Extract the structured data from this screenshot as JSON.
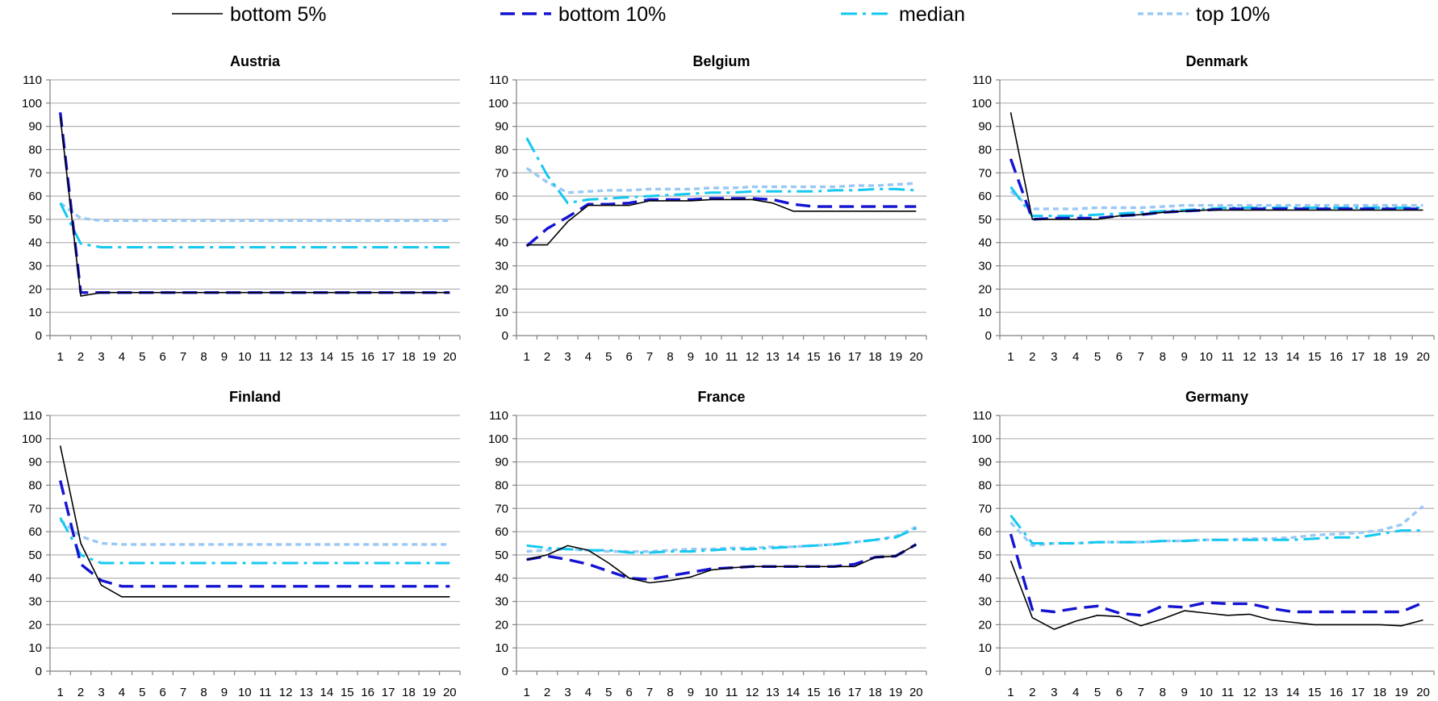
{
  "legend": [
    {
      "key": "b5",
      "label": "bottom 5%"
    },
    {
      "key": "b10",
      "label": "bottom 10%"
    },
    {
      "key": "med",
      "label": "median"
    },
    {
      "key": "t10",
      "label": "top 10%"
    }
  ],
  "styles": {
    "b5": {
      "color": "#000000",
      "width": 1.6,
      "dash": ""
    },
    "b10": {
      "color": "#1414d2",
      "width": 3.4,
      "dash": "18,9"
    },
    "med": {
      "color": "#14c8f0",
      "width": 3.0,
      "dash": "20,7,4,7"
    },
    "t10": {
      "color": "#9ac8f4",
      "width": 3.4,
      "dash": "7,5"
    }
  },
  "chart_data": [
    {
      "type": "line",
      "title": "Austria",
      "x": [
        1,
        2,
        3,
        4,
        5,
        6,
        7,
        8,
        9,
        10,
        11,
        12,
        13,
        14,
        15,
        16,
        17,
        18,
        19,
        20
      ],
      "ylim": [
        0,
        110
      ],
      "yticks": [
        0,
        10,
        20,
        30,
        40,
        50,
        60,
        70,
        80,
        90,
        100,
        110
      ],
      "grid": true,
      "series": [
        {
          "key": "b5",
          "name": "bottom 5%",
          "values": [
            94,
            17,
            18.5,
            18.5,
            18.5,
            18.5,
            18.5,
            18.5,
            18.5,
            18.5,
            18.5,
            18.5,
            18.5,
            18.5,
            18.5,
            18.5,
            18.5,
            18.5,
            18.5,
            18.5
          ]
        },
        {
          "key": "b10",
          "name": "bottom 10%",
          "values": [
            96,
            18.5,
            18.5,
            18.5,
            18.5,
            18.5,
            18.5,
            18.5,
            18.5,
            18.5,
            18.5,
            18.5,
            18.5,
            18.5,
            18.5,
            18.5,
            18.5,
            18.5,
            18.5,
            18.5
          ]
        },
        {
          "key": "med",
          "name": "median",
          "values": [
            57,
            39.5,
            38,
            38,
            38,
            38,
            38,
            38,
            38,
            38,
            38,
            38,
            38,
            38,
            38,
            38,
            38,
            38,
            38,
            38
          ]
        },
        {
          "key": "t10",
          "name": "top 10%",
          "values": [
            57,
            50.5,
            49.5,
            49.5,
            49.5,
            49.5,
            49.5,
            49.5,
            49.5,
            49.5,
            49.5,
            49.5,
            49.5,
            49.5,
            49.5,
            49.5,
            49.5,
            49.5,
            49.5,
            49.5
          ]
        }
      ]
    },
    {
      "type": "line",
      "title": "Belgium",
      "x": [
        1,
        2,
        3,
        4,
        5,
        6,
        7,
        8,
        9,
        10,
        11,
        12,
        13,
        14,
        15,
        16,
        17,
        18,
        19,
        20
      ],
      "ylim": [
        0,
        110
      ],
      "yticks": [
        0,
        10,
        20,
        30,
        40,
        50,
        60,
        70,
        80,
        90,
        100,
        110
      ],
      "grid": true,
      "series": [
        {
          "key": "b5",
          "name": "bottom 5%",
          "values": [
            39,
            39,
            49,
            56,
            56,
            56,
            58,
            58,
            58,
            58.5,
            58.5,
            58.5,
            57,
            53.5,
            53.5,
            53.5,
            53.5,
            53.5,
            53.5,
            53.5
          ]
        },
        {
          "key": "b10",
          "name": "bottom 10%",
          "values": [
            38.5,
            46,
            51,
            56.5,
            56.5,
            57,
            58.5,
            58.5,
            58.5,
            59,
            59,
            59,
            58.5,
            56.5,
            55.5,
            55.5,
            55.5,
            55.5,
            55.5,
            55.5
          ]
        },
        {
          "key": "med",
          "name": "median",
          "values": [
            85,
            69,
            57,
            58.5,
            59,
            59.5,
            60,
            60.5,
            61,
            61.5,
            61.5,
            62,
            62,
            62,
            62,
            62.5,
            62.5,
            63,
            63,
            62.5
          ]
        },
        {
          "key": "t10",
          "name": "top 10%",
          "values": [
            72,
            66,
            61.5,
            62,
            62.5,
            62.5,
            63,
            63,
            63,
            63.5,
            63.5,
            64,
            64,
            64,
            64,
            64,
            64.5,
            64.5,
            65,
            65.5
          ]
        }
      ]
    },
    {
      "type": "line",
      "title": "Denmark",
      "x": [
        1,
        2,
        3,
        4,
        5,
        6,
        7,
        8,
        9,
        10,
        11,
        12,
        13,
        14,
        15,
        16,
        17,
        18,
        19,
        20
      ],
      "ylim": [
        0,
        110
      ],
      "yticks": [
        0,
        10,
        20,
        30,
        40,
        50,
        60,
        70,
        80,
        90,
        100,
        110
      ],
      "grid": true,
      "series": [
        {
          "key": "b5",
          "name": "bottom 5%",
          "values": [
            96,
            50,
            50,
            50,
            50,
            51.5,
            52,
            53,
            53.5,
            54,
            54,
            54,
            54,
            54,
            54,
            54,
            54,
            54,
            54,
            54
          ]
        },
        {
          "key": "b10",
          "name": "bottom 10%",
          "values": [
            76,
            50,
            50.5,
            50.5,
            50.5,
            51.5,
            52,
            53,
            53.5,
            54,
            54.5,
            54.5,
            54.5,
            54.5,
            54.5,
            54.5,
            54.5,
            54.5,
            54.5,
            54.5
          ]
        },
        {
          "key": "med",
          "name": "median",
          "values": [
            64,
            51.5,
            51.5,
            51.5,
            52,
            52.5,
            53,
            53.5,
            54,
            54.5,
            55,
            55,
            55,
            55,
            55,
            55,
            55,
            55,
            55,
            55
          ]
        },
        {
          "key": "t10",
          "name": "top 10%",
          "values": [
            62,
            54.5,
            54.5,
            54.5,
            55,
            55,
            55,
            55.5,
            56,
            56,
            56,
            56,
            56,
            56,
            56,
            56,
            56,
            56,
            56,
            56
          ]
        }
      ]
    },
    {
      "type": "line",
      "title": "Finland",
      "x": [
        1,
        2,
        3,
        4,
        5,
        6,
        7,
        8,
        9,
        10,
        11,
        12,
        13,
        14,
        15,
        16,
        17,
        18,
        19,
        20
      ],
      "ylim": [
        0,
        110
      ],
      "yticks": [
        0,
        10,
        20,
        30,
        40,
        50,
        60,
        70,
        80,
        90,
        100,
        110
      ],
      "grid": true,
      "series": [
        {
          "key": "b5",
          "name": "bottom 5%",
          "values": [
            97,
            55,
            37,
            32,
            32,
            32,
            32,
            32,
            32,
            32,
            32,
            32,
            32,
            32,
            32,
            32,
            32,
            32,
            32,
            32
          ]
        },
        {
          "key": "b10",
          "name": "bottom 10%",
          "values": [
            82,
            46,
            39,
            36.5,
            36.5,
            36.5,
            36.5,
            36.5,
            36.5,
            36.5,
            36.5,
            36.5,
            36.5,
            36.5,
            36.5,
            36.5,
            36.5,
            36.5,
            36.5,
            36.5
          ]
        },
        {
          "key": "med",
          "name": "median",
          "values": [
            66,
            50,
            46.5,
            46.5,
            46.5,
            46.5,
            46.5,
            46.5,
            46.5,
            46.5,
            46.5,
            46.5,
            46.5,
            46.5,
            46.5,
            46.5,
            46.5,
            46.5,
            46.5,
            46.5
          ]
        },
        {
          "key": "t10",
          "name": "top 10%",
          "values": [
            65,
            58,
            55,
            54.5,
            54.5,
            54.5,
            54.5,
            54.5,
            54.5,
            54.5,
            54.5,
            54.5,
            54.5,
            54.5,
            54.5,
            54.5,
            54.5,
            54.5,
            54.5,
            54.5
          ]
        }
      ]
    },
    {
      "type": "line",
      "title": "France",
      "x": [
        1,
        2,
        3,
        4,
        5,
        6,
        7,
        8,
        9,
        10,
        11,
        12,
        13,
        14,
        15,
        16,
        17,
        18,
        19,
        20
      ],
      "ylim": [
        0,
        110
      ],
      "yticks": [
        0,
        10,
        20,
        30,
        40,
        50,
        60,
        70,
        80,
        90,
        100,
        110
      ],
      "grid": true,
      "series": [
        {
          "key": "b5",
          "name": "bottom 5%",
          "values": [
            48,
            50,
            54,
            52,
            46.5,
            40,
            38,
            39,
            40.5,
            43.5,
            44.5,
            45,
            45,
            45,
            45,
            45,
            45,
            49,
            49.5,
            54.5
          ]
        },
        {
          "key": "b10",
          "name": "bottom 10%",
          "values": [
            48,
            49.5,
            48,
            46,
            43,
            40,
            39.5,
            41,
            42.5,
            44,
            44.5,
            45,
            45,
            45,
            45,
            45,
            46,
            49,
            49.5,
            54.5
          ]
        },
        {
          "key": "med",
          "name": "median",
          "values": [
            54,
            53,
            52.5,
            52,
            52,
            51,
            51,
            51.5,
            51.5,
            52,
            52.5,
            52.5,
            53,
            53.5,
            54,
            54.5,
            55.5,
            56.5,
            57.5,
            61.5
          ]
        },
        {
          "key": "t10",
          "name": "top 10%",
          "values": [
            51.5,
            52,
            52.5,
            52,
            51.5,
            51.5,
            51.5,
            52,
            52.5,
            52.5,
            53,
            53,
            53.5,
            53.5,
            54,
            54.5,
            55.5,
            56.5,
            58,
            62
          ]
        }
      ]
    },
    {
      "type": "line",
      "title": "Germany",
      "x": [
        1,
        2,
        3,
        4,
        5,
        6,
        7,
        8,
        9,
        10,
        11,
        12,
        13,
        14,
        15,
        16,
        17,
        18,
        19,
        20
      ],
      "ylim": [
        0,
        110
      ],
      "yticks": [
        0,
        10,
        20,
        30,
        40,
        50,
        60,
        70,
        80,
        90,
        100,
        110
      ],
      "grid": true,
      "series": [
        {
          "key": "b5",
          "name": "bottom 5%",
          "values": [
            47.5,
            23,
            18,
            21.5,
            24,
            23.5,
            19.5,
            22.5,
            26,
            25,
            24,
            24.5,
            22,
            21,
            20,
            20,
            20,
            20,
            19.5,
            22
          ]
        },
        {
          "key": "b10",
          "name": "bottom 10%",
          "values": [
            59,
            26.5,
            25.5,
            27,
            28,
            25,
            24,
            28,
            27.5,
            29.5,
            29,
            29,
            27,
            25.5,
            25.5,
            25.5,
            25.5,
            25.5,
            25.5,
            29.5
          ]
        },
        {
          "key": "med",
          "name": "median",
          "values": [
            67,
            55,
            55,
            55,
            55.5,
            55.5,
            55.5,
            56,
            56,
            56.5,
            56.5,
            56.5,
            56.5,
            56.5,
            57,
            57.5,
            57.5,
            59,
            60.5,
            60.5
          ]
        },
        {
          "key": "t10",
          "name": "top 10%",
          "values": [
            64,
            54,
            55,
            55,
            55.5,
            55.5,
            55.5,
            56,
            56,
            56.5,
            56.5,
            57,
            57,
            57.5,
            58.5,
            59,
            59.5,
            60.5,
            63,
            71
          ]
        }
      ]
    }
  ]
}
